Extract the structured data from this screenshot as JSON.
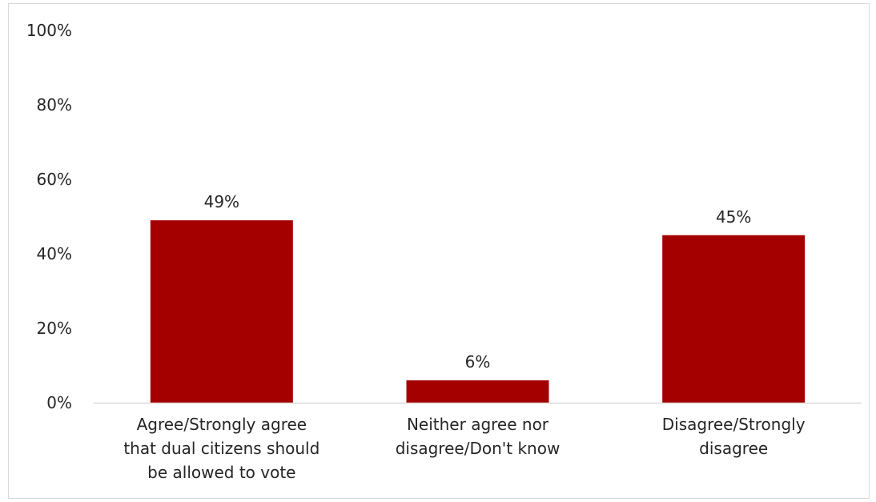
{
  "chart_data": {
    "type": "bar",
    "categories": [
      [
        "Agree/Strongly agree",
        "that dual citizens should",
        "be allowed to vote"
      ],
      [
        "Neither agree nor",
        "disagree/Don't know"
      ],
      [
        "Disagree/Strongly",
        "disagree"
      ]
    ],
    "values": [
      49,
      6,
      45
    ],
    "data_labels": [
      "49%",
      "6%",
      "45%"
    ],
    "ylim": [
      0,
      100
    ],
    "yticks": [
      0,
      20,
      40,
      60,
      80,
      100
    ],
    "ytick_labels": [
      "0%",
      "20%",
      "40%",
      "60%",
      "80%",
      "100%"
    ],
    "bar_color": "#a50000",
    "axis_color": "#d9d9d9",
    "grid": false,
    "legend": "none"
  }
}
